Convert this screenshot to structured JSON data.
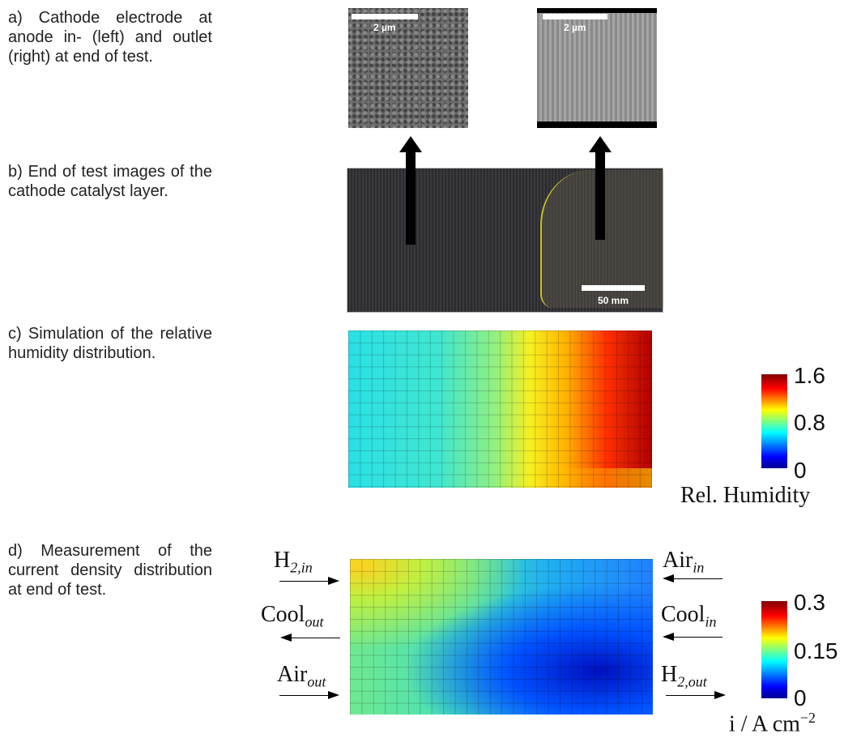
{
  "panels": [
    {
      "caption": "a) Cathode electrode at anode in- (left) and outlet (right) at end of test.",
      "scale_bars": [
        "2 µm",
        "2 µm"
      ]
    },
    {
      "caption": "b) End of test images of the cathode catalyst layer.",
      "scale_bars": [
        "50 mm"
      ]
    },
    {
      "caption": "c) Simulation of the relative humidity distribution.",
      "colorbar": {
        "ticks": [
          "1.6",
          "0.8",
          "0"
        ],
        "label": "Rel. Humidity"
      }
    },
    {
      "caption": "d) Measurement of the current density distribution at end of test.",
      "colorbar": {
        "ticks": [
          "0.3",
          "0.15",
          "0"
        ],
        "label": {
          "text": "i / A cm",
          "sup": "−2"
        }
      },
      "flows": [
        {
          "base": "H",
          "sub": "2,in"
        },
        {
          "base": "Cool",
          "sub": "out"
        },
        {
          "base": "Air",
          "sub": "out"
        },
        {
          "base": "Air",
          "sub": "in"
        },
        {
          "base": "Cool",
          "sub": "in"
        },
        {
          "base": "H",
          "sub": "2,out"
        }
      ]
    }
  ]
}
